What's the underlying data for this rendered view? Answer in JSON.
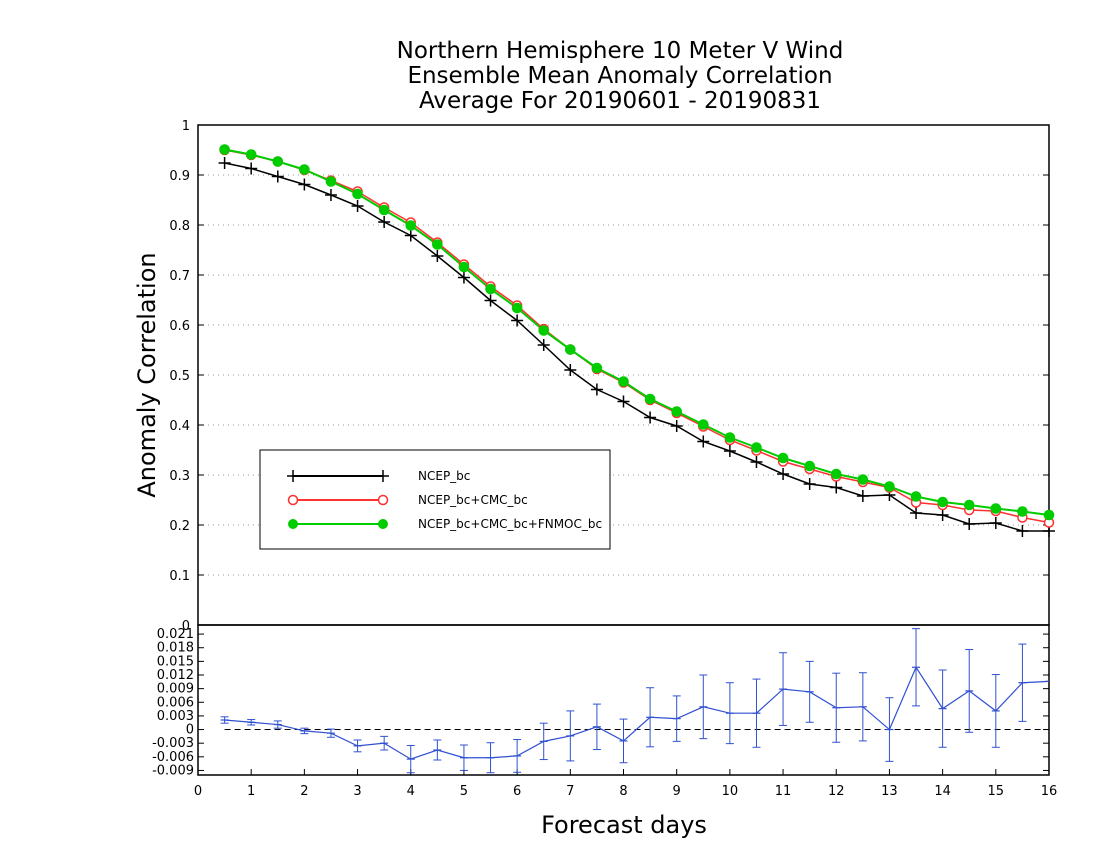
{
  "chart_data": [
    {
      "type": "line",
      "title": [
        "Northern Hemisphere 10 Meter V Wind",
        "Ensemble Mean Anomaly Correlation",
        "Average For 20190601 - 20190831"
      ],
      "xlabel": "Forecast days",
      "ylabel": "Anomaly Correlation",
      "xlim": [
        0,
        16
      ],
      "ylim": [
        0,
        1
      ],
      "x_ticks": [
        "0",
        "1",
        "2",
        "3",
        "4",
        "5",
        "6",
        "7",
        "8",
        "9",
        "10",
        "11",
        "12",
        "13",
        "14",
        "15",
        "16"
      ],
      "y_ticks": [
        "0",
        "0.1",
        "0.2",
        "0.3",
        "0.4",
        "0.5",
        "0.6",
        "0.7",
        "0.8",
        "0.9",
        "1"
      ],
      "grid": true,
      "legend_position": "left",
      "x": [
        0.5,
        1,
        1.5,
        2,
        2.5,
        3,
        3.5,
        4,
        4.5,
        5,
        5.5,
        6,
        6.5,
        7,
        7.5,
        8,
        8.5,
        9,
        9.5,
        10,
        10.5,
        11,
        11.5,
        12,
        12.5,
        13,
        13.5,
        14,
        14.5,
        15,
        15.5,
        16
      ],
      "series": [
        {
          "name": "NCEP_bc",
          "color": "#000000",
          "marker": "plus",
          "values": [
            0.924,
            0.913,
            0.897,
            0.881,
            0.86,
            0.838,
            0.806,
            0.779,
            0.738,
            0.695,
            0.649,
            0.609,
            0.56,
            0.51,
            0.471,
            0.447,
            0.415,
            0.398,
            0.367,
            0.348,
            0.326,
            0.302,
            0.282,
            0.275,
            0.258,
            0.26,
            0.224,
            0.22,
            0.202,
            0.204,
            0.188,
            0.188
          ]
        },
        {
          "name": "NCEP_bc+CMC_bc",
          "color": "#ff3030",
          "marker": "open-circle",
          "values": [
            0.95,
            0.94,
            0.927,
            0.91,
            0.889,
            0.867,
            0.835,
            0.805,
            0.765,
            0.721,
            0.677,
            0.639,
            0.592,
            0.551,
            0.512,
            0.485,
            0.45,
            0.424,
            0.397,
            0.37,
            0.349,
            0.327,
            0.312,
            0.297,
            0.286,
            0.275,
            0.245,
            0.24,
            0.23,
            0.228,
            0.215,
            0.205
          ]
        },
        {
          "name": "NCEP_bc+CMC_bc+FNMOC_bc",
          "color": "#00cc00",
          "marker": "filled-circle",
          "values": [
            0.951,
            0.941,
            0.927,
            0.911,
            0.887,
            0.862,
            0.83,
            0.799,
            0.761,
            0.716,
            0.672,
            0.634,
            0.589,
            0.551,
            0.514,
            0.487,
            0.452,
            0.427,
            0.401,
            0.375,
            0.355,
            0.334,
            0.318,
            0.302,
            0.291,
            0.277,
            0.257,
            0.246,
            0.24,
            0.233,
            0.227,
            0.22
          ]
        }
      ]
    },
    {
      "type": "line",
      "subtype": "difference-with-error-bars",
      "xlim": [
        0,
        16
      ],
      "ylim": [
        -0.01,
        0.023
      ],
      "y_ticks": [
        "0.021",
        "0.018",
        "0.015",
        "0.012",
        "0.009",
        "0.006",
        "0.003",
        "0",
        "-0.003",
        "-0.006",
        "-0.009"
      ],
      "x_ticks": [
        "0",
        "1",
        "2",
        "3",
        "4",
        "5",
        "6",
        "7",
        "8",
        "9",
        "10",
        "11",
        "12",
        "13",
        "14",
        "15",
        "16"
      ],
      "xlabel": "Forecast days",
      "zero_line": true,
      "color": "#3050d0",
      "x": [
        0.5,
        1,
        1.5,
        2,
        2.5,
        3,
        3.5,
        4,
        4.5,
        5,
        5.5,
        6,
        6.5,
        7,
        7.5,
        8,
        8.5,
        9,
        9.5,
        10,
        10.5,
        11,
        11.5,
        12,
        12.5,
        13,
        13.5,
        14,
        14.5,
        15,
        15.5,
        16
      ],
      "values": [
        0.0021,
        0.0016,
        0.0011,
        -0.0003,
        -0.0008,
        -0.0036,
        -0.003,
        -0.0065,
        -0.0045,
        -0.0062,
        -0.0062,
        -0.0058,
        -0.0026,
        -0.0014,
        0.0006,
        -0.0025,
        0.0027,
        0.0024,
        0.005,
        0.0036,
        0.0036,
        0.0089,
        0.0083,
        0.0048,
        0.005,
        0.0,
        0.0137,
        0.0046,
        0.0085,
        0.0041,
        0.0103,
        0.0106
      ],
      "errors": [
        0.0007,
        0.0006,
        0.0008,
        0.0006,
        0.0009,
        0.0013,
        0.0015,
        0.003,
        0.0022,
        0.0028,
        0.0033,
        0.0036,
        0.004,
        0.0055,
        0.005,
        0.0048,
        0.0065,
        0.005,
        0.007,
        0.0067,
        0.0075,
        0.008,
        0.0067,
        0.0076,
        0.0075,
        0.007,
        0.0085,
        0.0085,
        0.0091,
        0.008,
        0.0085,
        0.0
      ]
    }
  ]
}
